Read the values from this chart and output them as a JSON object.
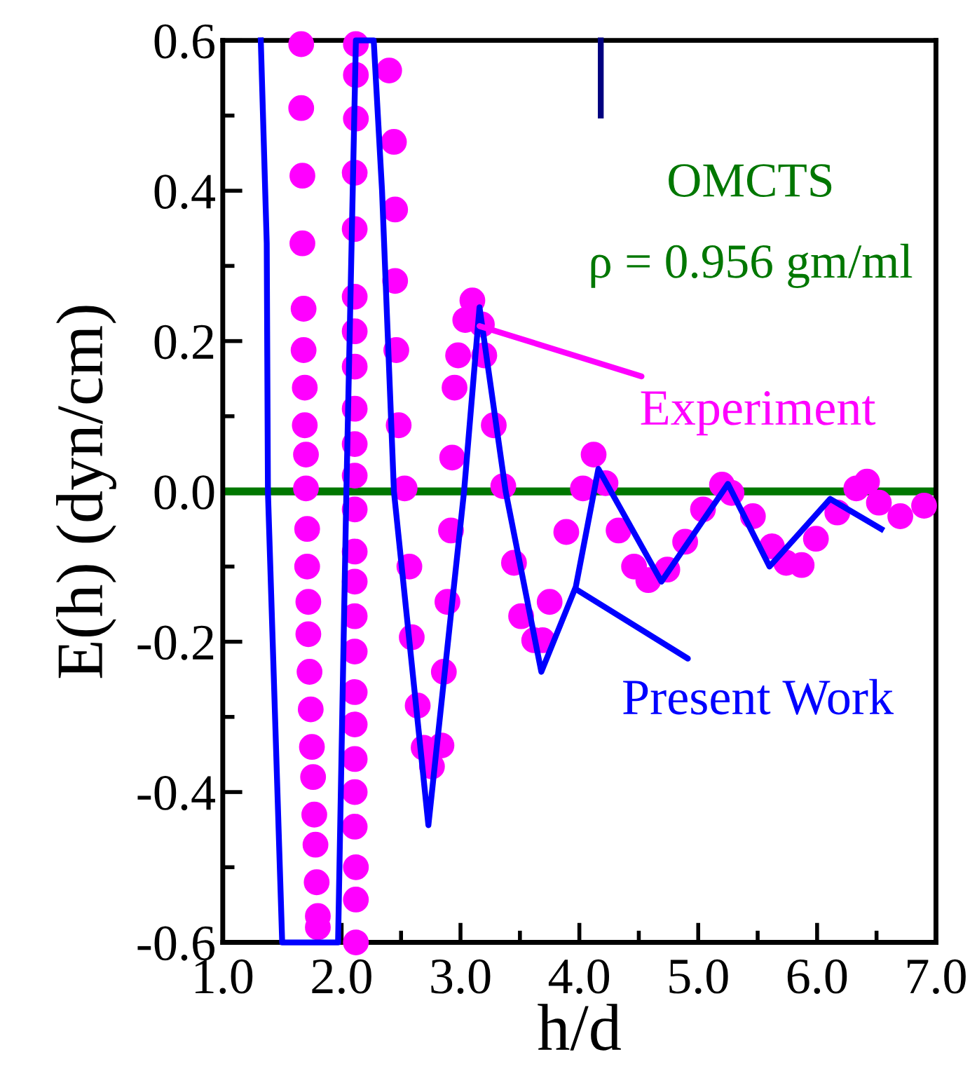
{
  "chart_data": {
    "type": "line",
    "xlabel": "h/d",
    "ylabel": "E(h) (dyn/cm)",
    "xlim": [
      1.0,
      7.0
    ],
    "ylim": [
      -0.6,
      0.6
    ],
    "xticks": [
      {
        "value": 1,
        "label": "1.0"
      },
      {
        "value": 2,
        "label": "2.0"
      },
      {
        "value": 3,
        "label": "3.0"
      },
      {
        "value": 4,
        "label": "4.0"
      },
      {
        "value": 5,
        "label": "5.0"
      },
      {
        "value": 6,
        "label": "6.0"
      },
      {
        "value": 7,
        "label": "7.0"
      }
    ],
    "yticks": [
      {
        "value": -0.6,
        "label": "-0.6"
      },
      {
        "value": -0.4,
        "label": "-0.4"
      },
      {
        "value": -0.2,
        "label": "-0.2"
      },
      {
        "value": 0,
        "label": "0.0"
      },
      {
        "value": 0.2,
        "label": "0.2"
      },
      {
        "value": 0.4,
        "label": "0.4"
      },
      {
        "value": 0.6,
        "label": "0.6"
      }
    ],
    "grid": false,
    "legend": false,
    "series": [
      {
        "color": "#0000ff",
        "x": [
          1.32,
          1.37,
          1.38,
          1.5,
          1.97,
          2.04,
          2.12,
          2.27,
          2.34,
          2.44,
          2.73,
          3.03,
          3.16,
          3.38,
          3.68,
          3.97,
          4.16,
          4.69,
          5.25,
          5.6,
          6.11,
          6.54
        ],
        "values": [
          0.6,
          0.33,
          0.0,
          -0.6,
          -0.6,
          0.0,
          0.6,
          0.6,
          0.4,
          0.0,
          -0.444,
          0.0,
          0.245,
          0.0,
          -0.24,
          -0.127,
          0.03,
          -0.12,
          0.01,
          -0.1,
          -0.01,
          -0.05
        ]
      },
      {
        "type": "scatter",
        "color": "#ff00ff",
        "marker": "circle",
        "x": [
          1.66,
          1.66,
          1.67,
          1.67,
          1.68,
          1.68,
          1.69,
          1.69,
          1.7,
          1.7,
          1.71,
          1.71,
          1.72,
          1.72,
          1.73,
          1.74,
          1.75,
          1.76,
          1.77,
          1.78,
          1.79,
          1.8,
          1.8,
          2.12,
          2.12,
          2.12,
          2.11,
          2.11,
          2.11,
          2.11,
          2.11,
          2.11,
          2.11,
          2.11,
          2.11,
          2.11,
          2.11,
          2.11,
          2.11,
          2.11,
          2.11,
          2.11,
          2.11,
          2.11,
          2.12,
          2.12,
          2.12,
          2.4,
          2.44,
          2.45,
          2.45,
          2.46,
          2.48,
          2.53,
          2.57,
          2.59,
          2.64,
          2.69,
          2.76,
          2.84,
          2.86,
          2.89,
          2.92,
          2.93,
          2.95,
          2.98,
          3.04,
          3.1,
          3.18,
          3.2,
          3.28,
          3.36,
          3.45,
          3.51,
          3.62,
          3.69,
          3.75,
          3.89,
          4.03,
          4.12,
          4.22,
          4.33,
          4.46,
          4.58,
          4.74,
          4.89,
          5.04,
          5.2,
          5.28,
          5.46,
          5.62,
          5.74,
          5.87,
          5.99,
          6.17,
          6.33,
          6.42,
          6.52,
          6.7,
          6.9
        ],
        "values": [
          0.595,
          0.51,
          0.42,
          0.33,
          0.243,
          0.188,
          0.138,
          0.088,
          0.049,
          0.004,
          -0.05,
          -0.1,
          -0.147,
          -0.19,
          -0.24,
          -0.29,
          -0.34,
          -0.38,
          -0.43,
          -0.47,
          -0.52,
          -0.565,
          -0.58,
          0.595,
          0.554,
          0.496,
          0.424,
          0.349,
          0.259,
          0.213,
          0.166,
          0.11,
          0.063,
          0.021,
          -0.024,
          -0.08,
          -0.12,
          -0.166,
          -0.213,
          -0.267,
          -0.31,
          -0.356,
          -0.4,
          -0.446,
          -0.5,
          -0.543,
          -0.6,
          0.56,
          0.465,
          0.375,
          0.28,
          0.188,
          0.088,
          0.004,
          -0.1,
          -0.194,
          -0.285,
          -0.341,
          -0.366,
          -0.338,
          -0.24,
          -0.147,
          -0.052,
          0.045,
          0.138,
          0.181,
          0.228,
          0.254,
          0.222,
          0.181,
          0.088,
          0.007,
          -0.095,
          -0.166,
          -0.198,
          -0.198,
          -0.147,
          -0.054,
          0.004,
          0.049,
          0.011,
          -0.052,
          -0.1,
          -0.118,
          -0.104,
          -0.067,
          -0.024,
          0.009,
          -0.002,
          -0.033,
          -0.073,
          -0.095,
          -0.098,
          -0.063,
          -0.028,
          0.004,
          0.013,
          -0.015,
          -0.033,
          -0.019
        ]
      },
      {
        "type": "line",
        "color": "#000080",
        "x": [
          4.18,
          4.18
        ],
        "values": [
          0.6,
          0.5
        ]
      }
    ],
    "ref_lines": [
      {
        "axis": "y",
        "value": 0,
        "color": "#007700",
        "line_style": "solid"
      }
    ],
    "annotations": [
      "OMCTS",
      "ρ = 0.956 gm/ml",
      {
        "text": "Experiment",
        "x": 3.16,
        "y": 0.22
      },
      {
        "text": "Present Work",
        "x": 3.97,
        "y": -0.13
      }
    ]
  }
}
